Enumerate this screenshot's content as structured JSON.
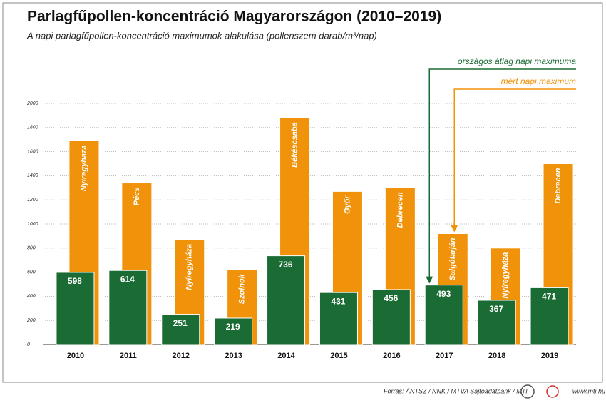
{
  "chart_data": {
    "type": "bar",
    "title": "Parlagfűpollen-koncentráció Magyarországon (2010–2019)",
    "subtitle": "A napi parlagfűpollen-koncentráció maximumok alakulása (pollenszem darab/m³/nap)",
    "categories": [
      "2010",
      "2011",
      "2012",
      "2013",
      "2014",
      "2015",
      "2016",
      "2017",
      "2018",
      "2019"
    ],
    "series": [
      {
        "name": "mért napi maximum",
        "color": "#f0920a",
        "values": [
          1690,
          1340,
          870,
          620,
          1880,
          1270,
          1300,
          920,
          800,
          1500
        ],
        "point_labels": [
          "Nyíregyháza",
          "Pécs",
          "Nyíregyháza",
          "Szolnok",
          "Békéscsaba",
          "Győr",
          "Debrecen",
          "Salgótarján",
          "Nyíregyháza",
          "Debrecen"
        ]
      },
      {
        "name": "országos átlag napi maximuma",
        "color": "#1a6b34",
        "values": [
          598,
          614,
          251,
          219,
          736,
          431,
          456,
          493,
          367,
          471
        ]
      }
    ],
    "ylim": [
      0,
      2000
    ],
    "yticks": [
      0,
      200,
      400,
      600,
      800,
      1000,
      1200,
      1400,
      1600,
      1800,
      2000
    ],
    "grid": true,
    "source": "Forrás: ÁNTSZ / NNK / MTVA Sajtóadatbank / MTI",
    "website": "www.mti.hu"
  }
}
